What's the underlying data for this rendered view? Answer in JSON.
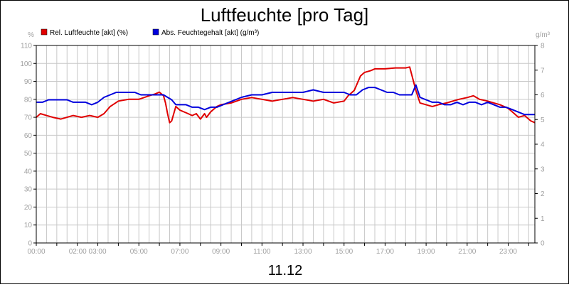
{
  "chart_data": {
    "type": "line",
    "title": "Luftfeuchte [pro Tag]",
    "date_label": "11.12",
    "y_left_unit": "%",
    "y_right_unit": "g/m³",
    "y_left_range": [
      0,
      110
    ],
    "y_left_ticks": [
      "0",
      "10",
      "20",
      "30",
      "40",
      "50",
      "60",
      "70",
      "80",
      "90",
      "100",
      "110"
    ],
    "y_right_range": [
      0,
      8
    ],
    "y_right_ticks": [
      "0",
      "1",
      "2",
      "3",
      "4",
      "5",
      "6",
      "7",
      "8"
    ],
    "x_range_hours": [
      0,
      24.3
    ],
    "x_ticks": [
      {
        "h": 0,
        "label": "00:00"
      },
      {
        "h": 2.5,
        "label": "02:00 03:00"
      },
      {
        "h": 5,
        "label": "05:00"
      },
      {
        "h": 7,
        "label": "07:00"
      },
      {
        "h": 9,
        "label": "09:00"
      },
      {
        "h": 11,
        "label": "11:00"
      },
      {
        "h": 13,
        "label": "13:00"
      },
      {
        "h": 15,
        "label": "15:00"
      },
      {
        "h": 17,
        "label": "17:00"
      },
      {
        "h": 19,
        "label": "19:00"
      },
      {
        "h": 21,
        "label": "21:00"
      },
      {
        "h": 23,
        "label": "23:00"
      }
    ],
    "grid": true,
    "legend_position": "top-left",
    "series": [
      {
        "name": "Rel. Luftfeuchte [akt] (%)",
        "color": "#e00000",
        "axis": "left",
        "x": [
          0,
          0.2,
          0.5,
          0.8,
          1.2,
          1.5,
          1.8,
          2.2,
          2.6,
          3,
          3.3,
          3.6,
          4,
          4.5,
          5,
          5.5,
          5.8,
          6,
          6.2,
          6.3,
          6.4,
          6.5,
          6.6,
          6.8,
          7,
          7.2,
          7.4,
          7.6,
          7.8,
          8,
          8.2,
          8.3,
          8.5,
          8.8,
          9,
          9.5,
          10,
          10.5,
          11,
          11.5,
          12,
          12.5,
          13,
          13.5,
          14,
          14.5,
          15,
          15.2,
          15.5,
          15.8,
          16,
          16.3,
          16.5,
          17,
          17.5,
          18,
          18.2,
          18.5,
          18.7,
          19,
          19.3,
          19.6,
          20,
          20.3,
          20.6,
          21,
          21.3,
          21.6,
          22,
          22.3,
          22.6,
          23,
          23.3,
          23.5,
          23.8,
          24.1,
          24.3
        ],
        "y": [
          70,
          72,
          71,
          70,
          69,
          70,
          71,
          70,
          71,
          70,
          72,
          76,
          79,
          80,
          80,
          82,
          83,
          84,
          82,
          78,
          72,
          67,
          68,
          76,
          74,
          73,
          72,
          71,
          72,
          69,
          72,
          70,
          73,
          76,
          77,
          78,
          80,
          81,
          80,
          79,
          80,
          81,
          80,
          79,
          80,
          78,
          79,
          82,
          85,
          93,
          95,
          96,
          97,
          97,
          97.5,
          97.5,
          98,
          85,
          78,
          77,
          76,
          77,
          78,
          79,
          80,
          81,
          82,
          80,
          79,
          78,
          77,
          75,
          72,
          70,
          71,
          68,
          67
        ]
      },
      {
        "name": "Abs. Feuchtegehalt [akt] (g/m³)",
        "color": "#0000dd",
        "axis": "right",
        "x": [
          0,
          0.3,
          0.6,
          0.9,
          1.2,
          1.5,
          1.8,
          2.1,
          2.4,
          2.7,
          3,
          3.3,
          3.6,
          3.9,
          4.2,
          4.5,
          4.8,
          5.1,
          5.5,
          5.9,
          6.2,
          6.4,
          6.6,
          6.8,
          7,
          7.3,
          7.6,
          7.9,
          8.2,
          8.5,
          8.8,
          9.1,
          9.4,
          9.7,
          10,
          10.5,
          11,
          11.5,
          12,
          12.5,
          13,
          13.5,
          14,
          14.5,
          15,
          15.3,
          15.6,
          15.9,
          16.2,
          16.5,
          16.8,
          17.1,
          17.4,
          17.7,
          18,
          18.3,
          18.5,
          18.7,
          19,
          19.3,
          19.6,
          19.9,
          20.2,
          20.5,
          20.8,
          21.1,
          21.4,
          21.7,
          22,
          22.3,
          22.6,
          22.9,
          23.2,
          23.5,
          23.8,
          24.1,
          24.3
        ],
        "y": [
          5.7,
          5.7,
          5.8,
          5.8,
          5.8,
          5.8,
          5.7,
          5.7,
          5.7,
          5.6,
          5.7,
          5.9,
          6,
          6.1,
          6.1,
          6.1,
          6.1,
          6,
          6,
          6,
          6,
          5.9,
          5.8,
          5.6,
          5.6,
          5.6,
          5.5,
          5.5,
          5.4,
          5.5,
          5.5,
          5.6,
          5.7,
          5.8,
          5.9,
          6,
          6,
          6.1,
          6.1,
          6.1,
          6.1,
          6.2,
          6.1,
          6.1,
          6.1,
          6,
          6,
          6.2,
          6.3,
          6.3,
          6.2,
          6.1,
          6.1,
          6,
          6,
          6,
          6.4,
          5.9,
          5.8,
          5.7,
          5.7,
          5.6,
          5.6,
          5.7,
          5.6,
          5.7,
          5.7,
          5.6,
          5.7,
          5.6,
          5.5,
          5.5,
          5.4,
          5.3,
          5.2,
          5.2,
          5.2
        ]
      }
    ]
  }
}
